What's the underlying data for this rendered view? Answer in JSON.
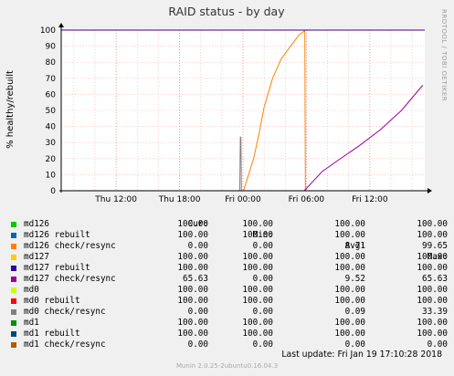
{
  "chart_data": {
    "type": "line",
    "title": "RAID status - by day",
    "ylabel": "% healthy/rebuilt",
    "side_label": "RRDTOOL / TOBI OETIKER",
    "ylim": [
      0,
      100
    ],
    "y_ticks": [
      0,
      10,
      20,
      30,
      40,
      50,
      60,
      70,
      80,
      90,
      100
    ],
    "x_tick_labels": [
      "Thu 12:00",
      "Thu 18:00",
      "Fri 00:00",
      "Fri 06:00",
      "Fri 12:00"
    ],
    "x_tick_hours": [
      12,
      18,
      24,
      30,
      36
    ],
    "x_range_hours": [
      6.8,
      41.2
    ],
    "grid": true,
    "series": [
      {
        "name": "md126",
        "color": "#00cc00",
        "x": [],
        "y": []
      },
      {
        "name": "md126 rebuilt",
        "color": "#0066b3",
        "x": [
          6.8,
          41.2
        ],
        "y": [
          100,
          100
        ]
      },
      {
        "name": "md126 check/resync",
        "color": "#ff8000",
        "x": [
          6.8,
          24.0,
          24.05,
          25.0,
          25.5,
          26.0,
          26.8,
          27.6,
          28.5,
          29.3,
          29.85,
          29.9,
          41.2
        ],
        "y": [
          0,
          0,
          0,
          20,
          35,
          52,
          70,
          82,
          90,
          97,
          99.65,
          0,
          0
        ]
      },
      {
        "name": "md127",
        "color": "#ffcc00",
        "x": [],
        "y": []
      },
      {
        "name": "md127 rebuilt",
        "color": "#330099",
        "x": [
          6.8,
          41.2
        ],
        "y": [
          100,
          100
        ]
      },
      {
        "name": "md127 check/resync",
        "color": "#990099",
        "x": [
          6.8,
          29.8,
          30.5,
          31.5,
          33.0,
          35.0,
          37.0,
          39.0,
          41.0
        ],
        "y": [
          0,
          0,
          5,
          12,
          19,
          28,
          38,
          50,
          65.63
        ]
      },
      {
        "name": "md0",
        "color": "#ccff00",
        "x": [],
        "y": []
      },
      {
        "name": "md0 rebuilt",
        "color": "#ff0000",
        "x": [],
        "y": []
      },
      {
        "name": "md0 check/resync",
        "color": "#808080",
        "x": [
          6.8,
          23.7,
          23.75,
          23.8,
          23.85,
          41.2
        ],
        "y": [
          0,
          0,
          33.39,
          33.39,
          0,
          0
        ]
      },
      {
        "name": "md1",
        "color": "#008f00",
        "x": [],
        "y": []
      },
      {
        "name": "md1 rebuilt",
        "color": "#00487d",
        "x": [],
        "y": []
      },
      {
        "name": "md1 check/resync",
        "color": "#b35a00",
        "x": [],
        "y": []
      }
    ]
  },
  "legend": {
    "headers": {
      "cur": "Cur:",
      "min": "Min:",
      "avg": "Avg:",
      "max": "Max:"
    },
    "rows": [
      {
        "name": "md126",
        "color": "#00cc00",
        "cur": "100.00",
        "min": "100.00",
        "avg": "100.00",
        "max": "100.00"
      },
      {
        "name": "md126 rebuilt",
        "color": "#0066b3",
        "cur": "100.00",
        "min": "100.00",
        "avg": "100.00",
        "max": "100.00"
      },
      {
        "name": "md126 check/resync",
        "color": "#ff8000",
        "cur": "0.00",
        "min": "0.00",
        "avg": "8.71",
        "max": "99.65"
      },
      {
        "name": "md127",
        "color": "#ffcc00",
        "cur": "100.00",
        "min": "100.00",
        "avg": "100.00",
        "max": "100.00"
      },
      {
        "name": "md127 rebuilt",
        "color": "#330099",
        "cur": "100.00",
        "min": "100.00",
        "avg": "100.00",
        "max": "100.00"
      },
      {
        "name": "md127 check/resync",
        "color": "#990099",
        "cur": "65.63",
        "min": "0.00",
        "avg": "9.52",
        "max": "65.63"
      },
      {
        "name": "md0",
        "color": "#ccff00",
        "cur": "100.00",
        "min": "100.00",
        "avg": "100.00",
        "max": "100.00"
      },
      {
        "name": "md0 rebuilt",
        "color": "#ff0000",
        "cur": "100.00",
        "min": "100.00",
        "avg": "100.00",
        "max": "100.00"
      },
      {
        "name": "md0 check/resync",
        "color": "#808080",
        "cur": "0.00",
        "min": "0.00",
        "avg": "0.09",
        "max": "33.39"
      },
      {
        "name": "md1",
        "color": "#008f00",
        "cur": "100.00",
        "min": "100.00",
        "avg": "100.00",
        "max": "100.00"
      },
      {
        "name": "md1 rebuilt",
        "color": "#00487d",
        "cur": "100.00",
        "min": "100.00",
        "avg": "100.00",
        "max": "100.00"
      },
      {
        "name": "md1 check/resync",
        "color": "#b35a00",
        "cur": "0.00",
        "min": "0.00",
        "avg": "0.00",
        "max": "0.00"
      }
    ]
  },
  "last_update": "Last update:  Fri Jan 19 17:10:28 2018",
  "footer": "Munin 2.0.25-2ubuntu0.16.04.3"
}
